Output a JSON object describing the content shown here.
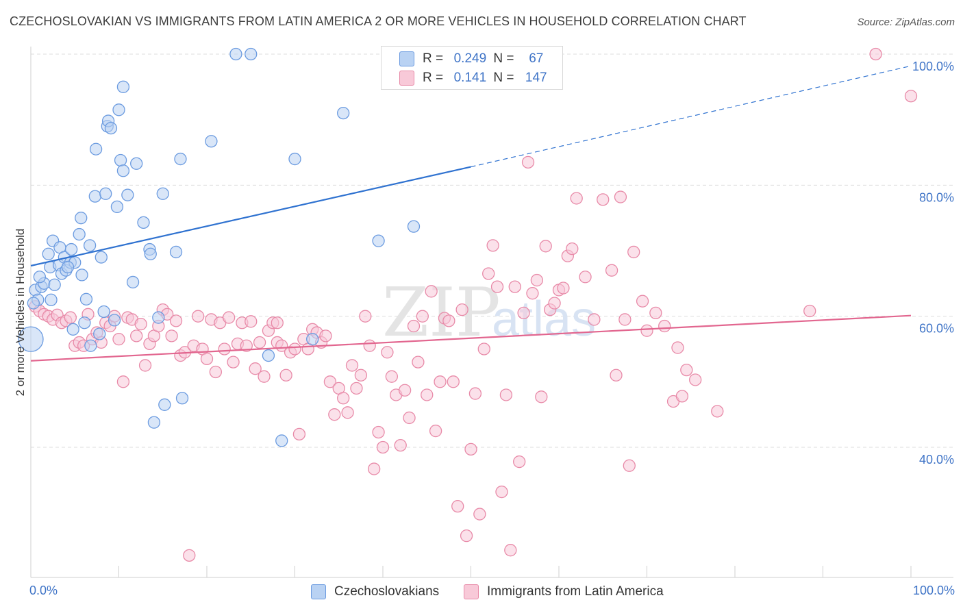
{
  "title": "CZECHOSLOVAKIAN VS IMMIGRANTS FROM LATIN AMERICA 2 OR MORE VEHICLES IN HOUSEHOLD CORRELATION CHART",
  "source": "Source: ZipAtlas.com",
  "watermark": "ZIPatlas",
  "legend": {
    "rows": [
      {
        "r_label": "R =",
        "r_value": "0.249",
        "n_label": "N =",
        "n_value": "67"
      },
      {
        "r_label": "R =",
        "r_value": "0.141",
        "n_label": "N =",
        "n_value": "147"
      }
    ]
  },
  "bottom_legend": [
    "Czechoslovakians",
    "Immigrants from Latin America"
  ],
  "x_tick_left": "0.0%",
  "x_tick_right": "100.0%",
  "colors": {
    "blue": "#6b9be0",
    "blue_fill": "#b9d2f3",
    "blue_line": "#2f72d0",
    "pink": "#e88aa8",
    "pink_fill": "#f8c9d8",
    "pink_line": "#e2668f",
    "axis_text": "#3f74c7"
  },
  "chart_data": {
    "type": "scatter",
    "xlabel": "",
    "ylabel": "2 or more Vehicles in Household",
    "xlim": [
      0,
      100
    ],
    "ylim": [
      20,
      104
    ],
    "y_ticks": [
      40,
      60,
      80,
      100
    ],
    "y_tick_labels": [
      "40.0%",
      "60.0%",
      "80.0%",
      "100.0%"
    ],
    "grid": "horizontal dashed",
    "series": [
      {
        "name": "Czechoslovakians",
        "r": 0.249,
        "n": 67,
        "trend": {
          "x0": 0,
          "y0": 67.7,
          "x1": 50,
          "y1": 82.8,
          "dashed_to_x": 100,
          "dashed_to_y": 98.2
        },
        "points": [
          [
            0.0,
            56.5,
            "big"
          ],
          [
            0.5,
            64.0
          ],
          [
            0.8,
            62.5
          ],
          [
            1.2,
            64.5
          ],
          [
            1.5,
            65.0
          ],
          [
            2.0,
            69.5
          ],
          [
            2.2,
            67.5
          ],
          [
            2.3,
            62.5
          ],
          [
            2.5,
            71.5
          ],
          [
            2.7,
            64.8
          ],
          [
            3.2,
            67.8
          ],
          [
            3.3,
            70.5
          ],
          [
            3.5,
            66.5
          ],
          [
            3.8,
            69.0
          ],
          [
            4.0,
            67.0
          ],
          [
            4.5,
            68.2
          ],
          [
            4.6,
            70.2
          ],
          [
            4.8,
            58.0
          ],
          [
            5.0,
            68.2
          ],
          [
            5.5,
            72.5
          ],
          [
            5.7,
            75.0
          ],
          [
            5.8,
            66.3
          ],
          [
            6.1,
            59.0
          ],
          [
            6.3,
            62.6
          ],
          [
            6.7,
            70.8
          ],
          [
            6.8,
            55.5
          ],
          [
            7.3,
            78.3
          ],
          [
            7.4,
            85.5
          ],
          [
            7.8,
            57.3
          ],
          [
            8.0,
            69.0
          ],
          [
            8.3,
            60.7
          ],
          [
            8.5,
            78.7
          ],
          [
            8.7,
            89.0
          ],
          [
            8.8,
            89.8
          ],
          [
            9.1,
            88.7
          ],
          [
            9.5,
            59.4
          ],
          [
            9.8,
            76.7
          ],
          [
            10.0,
            91.5
          ],
          [
            10.2,
            83.8
          ],
          [
            10.5,
            82.2
          ],
          [
            10.5,
            95.0
          ],
          [
            11.0,
            78.5
          ],
          [
            11.6,
            65.2
          ],
          [
            12.0,
            83.3
          ],
          [
            12.8,
            74.3
          ],
          [
            13.5,
            70.2
          ],
          [
            13.6,
            69.5
          ],
          [
            14.0,
            43.8
          ],
          [
            14.5,
            59.8
          ],
          [
            15.0,
            78.7
          ],
          [
            15.2,
            46.5
          ],
          [
            16.5,
            69.8
          ],
          [
            17.0,
            84.0
          ],
          [
            17.2,
            47.5
          ],
          [
            20.5,
            86.7
          ],
          [
            23.3,
            100.0
          ],
          [
            25.0,
            100.0
          ],
          [
            27.0,
            54.0
          ],
          [
            28.5,
            41.0
          ],
          [
            30.0,
            84.0
          ],
          [
            32.0,
            56.5
          ],
          [
            35.5,
            91.0
          ],
          [
            39.5,
            71.5
          ],
          [
            43.5,
            73.7
          ],
          [
            0.3,
            62.0
          ],
          [
            1.0,
            66.0
          ],
          [
            4.2,
            67.5
          ]
        ]
      },
      {
        "name": "Immigrants from Latin America",
        "r": 0.141,
        "n": 147,
        "trend": {
          "x0": 0,
          "y0": 53.2,
          "x1": 100,
          "y1": 60.1
        },
        "points": [
          [
            0.5,
            61.5
          ],
          [
            1.0,
            60.8
          ],
          [
            1.5,
            60.3
          ],
          [
            2.0,
            60.0
          ],
          [
            2.5,
            59.5
          ],
          [
            3.0,
            60.2
          ],
          [
            3.5,
            59.0
          ],
          [
            4.0,
            59.3
          ],
          [
            4.5,
            59.8
          ],
          [
            5.0,
            55.5
          ],
          [
            5.5,
            56.0
          ],
          [
            6.0,
            55.5
          ],
          [
            6.5,
            60.3
          ],
          [
            7.0,
            56.5
          ],
          [
            7.5,
            57.5
          ],
          [
            8.0,
            56.0
          ],
          [
            8.5,
            59.0
          ],
          [
            9.0,
            58.5
          ],
          [
            9.5,
            60.0
          ],
          [
            10.0,
            56.5
          ],
          [
            10.5,
            50.0
          ],
          [
            11.0,
            59.8
          ],
          [
            11.5,
            59.5
          ],
          [
            12.0,
            57.0
          ],
          [
            12.5,
            58.8
          ],
          [
            13.0,
            52.5
          ],
          [
            13.5,
            55.8
          ],
          [
            14.0,
            57.0
          ],
          [
            14.5,
            58.5
          ],
          [
            15.0,
            61.0
          ],
          [
            15.5,
            60.3
          ],
          [
            16.0,
            57.0
          ],
          [
            16.5,
            59.3
          ],
          [
            17.0,
            54.0
          ],
          [
            17.5,
            54.5
          ],
          [
            18.0,
            23.5
          ],
          [
            18.5,
            55.5
          ],
          [
            19.0,
            60.0
          ],
          [
            19.5,
            55.0
          ],
          [
            20.0,
            53.5
          ],
          [
            20.5,
            59.5
          ],
          [
            21.0,
            51.5
          ],
          [
            21.5,
            59.0
          ],
          [
            22.0,
            55.0
          ],
          [
            22.5,
            59.8
          ],
          [
            23.0,
            53.0
          ],
          [
            23.5,
            55.8
          ],
          [
            24.0,
            59.0
          ],
          [
            24.5,
            55.5
          ],
          [
            25.0,
            59.2
          ],
          [
            25.5,
            52.0
          ],
          [
            26.0,
            56.0
          ],
          [
            26.5,
            50.8
          ],
          [
            27.0,
            57.8
          ],
          [
            27.5,
            59.0
          ],
          [
            28.0,
            56.0
          ],
          [
            28.5,
            55.5
          ],
          [
            29.0,
            51.0
          ],
          [
            29.5,
            54.5
          ],
          [
            30.0,
            55.0
          ],
          [
            30.5,
            42.0
          ],
          [
            31.0,
            56.5
          ],
          [
            31.5,
            55.0
          ],
          [
            32.0,
            58.0
          ],
          [
            32.5,
            57.5
          ],
          [
            33.0,
            56.0
          ],
          [
            33.5,
            57.0
          ],
          [
            34.0,
            50.0
          ],
          [
            34.5,
            45.0
          ],
          [
            35.0,
            49.0
          ],
          [
            35.5,
            47.5
          ],
          [
            36.0,
            45.3
          ],
          [
            36.5,
            52.5
          ],
          [
            37.0,
            49.0
          ],
          [
            37.5,
            51.0
          ],
          [
            38.0,
            60.0
          ],
          [
            38.5,
            55.5
          ],
          [
            39.0,
            36.7
          ],
          [
            39.5,
            42.3
          ],
          [
            40.0,
            40.0
          ],
          [
            40.5,
            54.5
          ],
          [
            41.0,
            50.8
          ],
          [
            41.5,
            48.0
          ],
          [
            42.0,
            40.3
          ],
          [
            42.5,
            48.7
          ],
          [
            43.0,
            44.5
          ],
          [
            43.5,
            58.5
          ],
          [
            44.0,
            53.0
          ],
          [
            44.5,
            60.0
          ],
          [
            45.0,
            48.0
          ],
          [
            45.5,
            63.8
          ],
          [
            46.0,
            42.5
          ],
          [
            46.5,
            50.0
          ],
          [
            47.0,
            59.7
          ],
          [
            47.5,
            59.3
          ],
          [
            48.0,
            50.0
          ],
          [
            48.5,
            31.0
          ],
          [
            49.0,
            61.0
          ],
          [
            49.5,
            26.5
          ],
          [
            50.0,
            39.7
          ],
          [
            50.5,
            48.2
          ],
          [
            51.0,
            29.8
          ],
          [
            51.5,
            55.0
          ],
          [
            52.0,
            66.5
          ],
          [
            52.5,
            70.8
          ],
          [
            53.0,
            64.5
          ],
          [
            53.5,
            33.2
          ],
          [
            54.0,
            48.0
          ],
          [
            54.5,
            24.3
          ],
          [
            55.0,
            64.5
          ],
          [
            55.5,
            37.8
          ],
          [
            56.0,
            60.5
          ],
          [
            56.5,
            83.5
          ],
          [
            57.0,
            63.5
          ],
          [
            57.5,
            65.5
          ],
          [
            58.0,
            47.7
          ],
          [
            58.5,
            70.7
          ],
          [
            59.0,
            61.0
          ],
          [
            59.5,
            62.0
          ],
          [
            60.0,
            64.0
          ],
          [
            60.5,
            64.3
          ],
          [
            61.0,
            69.2
          ],
          [
            61.5,
            70.3
          ],
          [
            62.0,
            78.0
          ],
          [
            63.0,
            66.0
          ],
          [
            64.0,
            59.5
          ],
          [
            65.0,
            77.8
          ],
          [
            66.0,
            67.0
          ],
          [
            66.5,
            51.0
          ],
          [
            67.0,
            78.2
          ],
          [
            67.5,
            59.5
          ],
          [
            68.0,
            37.2
          ],
          [
            68.5,
            69.8
          ],
          [
            69.5,
            62.3
          ],
          [
            70.0,
            57.8
          ],
          [
            71.0,
            60.5
          ],
          [
            72.0,
            58.5
          ],
          [
            73.0,
            47.0
          ],
          [
            73.5,
            55.2
          ],
          [
            74.0,
            47.8
          ],
          [
            74.5,
            51.8
          ],
          [
            75.5,
            50.3
          ],
          [
            78.0,
            45.5
          ],
          [
            88.5,
            60.8
          ],
          [
            96.0,
            100.0
          ],
          [
            100.0,
            93.6
          ],
          [
            28.0,
            59.0
          ]
        ]
      }
    ]
  }
}
